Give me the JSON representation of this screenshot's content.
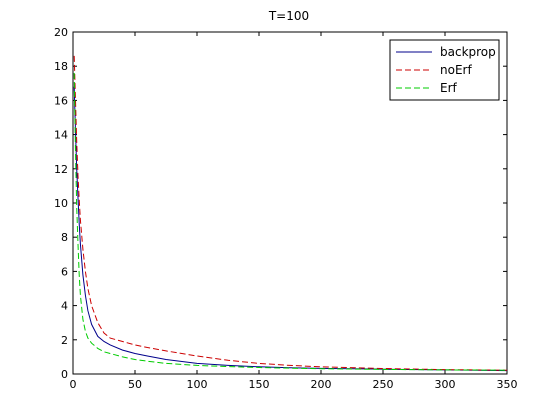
{
  "chart_data": {
    "type": "line",
    "title": "T=100",
    "xlabel": "",
    "ylabel": "",
    "xlim": [
      0,
      350
    ],
    "ylim": [
      0,
      20
    ],
    "xticks": [
      0,
      50,
      100,
      150,
      200,
      250,
      300,
      350
    ],
    "yticks": [
      0,
      2,
      4,
      6,
      8,
      10,
      12,
      14,
      16,
      18,
      20
    ],
    "grid": false,
    "legend_position": "top-right",
    "series": [
      {
        "name": "backprop",
        "color": "#00008b",
        "dash": "solid",
        "x": [
          1,
          2,
          3,
          4,
          5,
          6,
          8,
          10,
          12,
          15,
          20,
          25,
          30,
          40,
          50,
          60,
          75,
          100,
          125,
          150,
          175,
          200,
          250,
          300,
          350
        ],
        "y": [
          16.8,
          14.2,
          12.0,
          10.3,
          8.8,
          7.6,
          5.8,
          4.6,
          3.7,
          2.9,
          2.2,
          1.9,
          1.7,
          1.4,
          1.2,
          1.05,
          0.85,
          0.62,
          0.5,
          0.42,
          0.37,
          0.33,
          0.28,
          0.24,
          0.2
        ]
      },
      {
        "name": "noErf",
        "color": "#cc0000",
        "dash": "dashed",
        "x": [
          1,
          2,
          3,
          4,
          5,
          6,
          8,
          10,
          12,
          15,
          20,
          25,
          30,
          40,
          50,
          60,
          75,
          100,
          125,
          150,
          175,
          200,
          250,
          300,
          350
        ],
        "y": [
          18.6,
          16.0,
          13.6,
          11.6,
          10.2,
          9.0,
          7.3,
          6.0,
          5.0,
          4.0,
          3.0,
          2.4,
          2.1,
          1.9,
          1.7,
          1.55,
          1.35,
          1.05,
          0.8,
          0.62,
          0.5,
          0.42,
          0.32,
          0.26,
          0.22
        ]
      },
      {
        "name": "Erf",
        "color": "#00cc00",
        "dash": "dashed",
        "x": [
          1,
          2,
          3,
          4,
          5,
          6,
          8,
          10,
          12,
          15,
          20,
          25,
          30,
          40,
          50,
          60,
          75,
          100,
          125,
          150,
          175,
          200,
          250,
          300,
          350
        ],
        "y": [
          17.6,
          13.0,
          9.8,
          7.6,
          5.8,
          4.6,
          3.2,
          2.5,
          2.1,
          1.8,
          1.5,
          1.3,
          1.2,
          1.0,
          0.85,
          0.75,
          0.62,
          0.5,
          0.43,
          0.38,
          0.34,
          0.31,
          0.27,
          0.24,
          0.22
        ]
      }
    ]
  }
}
